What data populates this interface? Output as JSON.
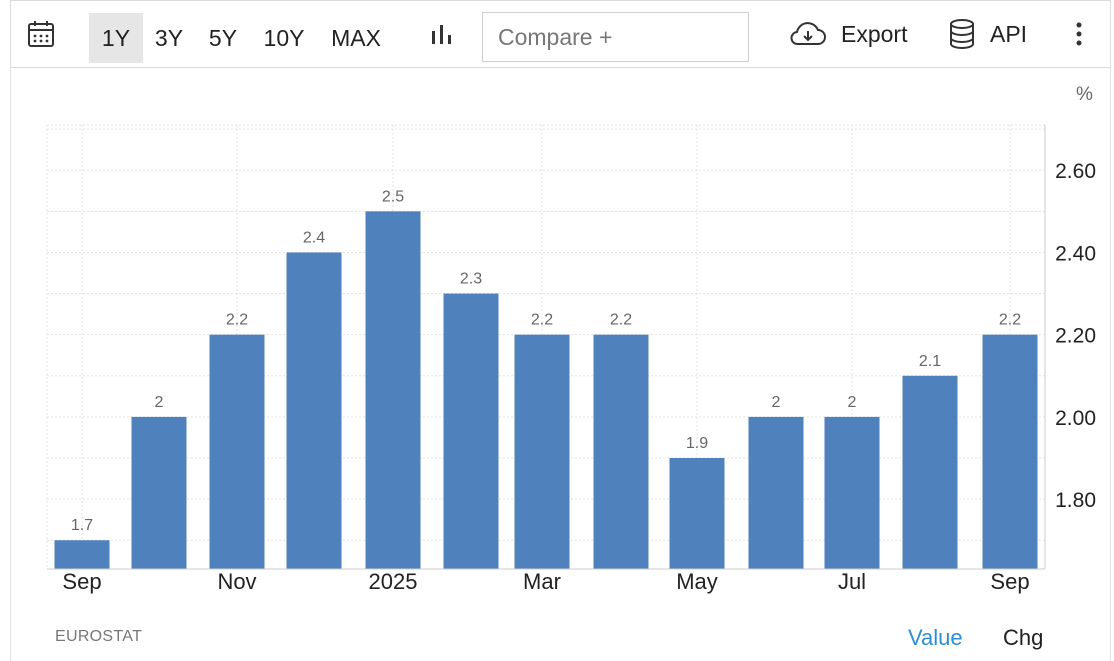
{
  "toolbar": {
    "calendar_icon": "calendar-icon",
    "ranges": [
      "1Y",
      "3Y",
      "5Y",
      "10Y",
      "MAX"
    ],
    "active_range": "1Y",
    "chart_type_icon": "bar-chart-icon",
    "compare_placeholder": "Compare +",
    "export_label": "Export",
    "export_icon": "cloud-download-icon",
    "api_label": "API",
    "api_icon": "database-icon",
    "more_icon": "more-vertical-icon"
  },
  "unit_label": "%",
  "source": "EUROSTAT",
  "footer": {
    "value_tab": "Value",
    "chg_tab": "Chg"
  },
  "colors": {
    "bar": "#4f81bd",
    "active_tab": "#2b8fd6",
    "grid": "#e3e3e3"
  },
  "chart_data": {
    "type": "bar",
    "categories": [
      "Sep 2024",
      "Oct 2024",
      "Nov 2024",
      "Dec 2024",
      "Jan 2025",
      "Feb 2025",
      "Mar 2025",
      "Apr 2025",
      "May 2025",
      "Jun 2025",
      "Jul 2025",
      "Aug 2025",
      "Sep 2025"
    ],
    "values": [
      1.7,
      2.0,
      2.2,
      2.4,
      2.5,
      2.3,
      2.2,
      2.2,
      1.9,
      2.0,
      2.0,
      2.1,
      2.2
    ],
    "data_labels": [
      "1.7",
      "2",
      "2.2",
      "2.4",
      "2.5",
      "2.3",
      "2.2",
      "2.2",
      "1.9",
      "2",
      "2",
      "2.1",
      "2.2"
    ],
    "x_tick_labels": [
      "Sep",
      "",
      "Nov",
      "",
      "2025",
      "",
      "Mar",
      "",
      "May",
      "",
      "Jul",
      "",
      "Sep"
    ],
    "y_ticks": [
      1.8,
      2.0,
      2.2,
      2.4,
      2.6
    ],
    "y_tick_labels": [
      "1.80",
      "2.00",
      "2.20",
      "2.40",
      "2.60"
    ],
    "ylim": [
      1.63,
      2.71
    ],
    "ylabel": "%",
    "grid": true,
    "y_axis_side": "right"
  }
}
